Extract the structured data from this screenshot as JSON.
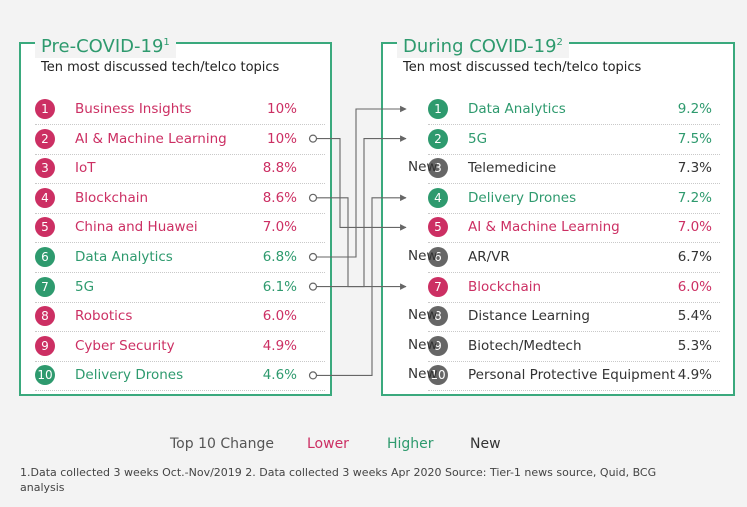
{
  "colors": {
    "lower": "#cc2f63",
    "higher": "#2e9a6e",
    "new": "#666666",
    "frame": "#3aa97d",
    "line": "#666666"
  },
  "left": {
    "title": "Pre-COVID-19",
    "title_sup": "1",
    "subtitle": "Ten most discussed tech/telco topics",
    "items": [
      {
        "rank": "1",
        "label": "Business Insights",
        "pct": "10%",
        "status": "lower"
      },
      {
        "rank": "2",
        "label": "AI & Machine Learning",
        "pct": "10%",
        "status": "lower"
      },
      {
        "rank": "3",
        "label": "IoT",
        "pct": "8.8%",
        "status": "lower"
      },
      {
        "rank": "4",
        "label": "Blockchain",
        "pct": "8.6%",
        "status": "lower"
      },
      {
        "rank": "5",
        "label": "China and Huawei",
        "pct": "7.0%",
        "status": "lower"
      },
      {
        "rank": "6",
        "label": "Data Analytics",
        "pct": "6.8%",
        "status": "higher"
      },
      {
        "rank": "7",
        "label": "5G",
        "pct": "6.1%",
        "status": "higher"
      },
      {
        "rank": "8",
        "label": "Robotics",
        "pct": "6.0%",
        "status": "lower"
      },
      {
        "rank": "9",
        "label": "Cyber Security",
        "pct": "4.9%",
        "status": "lower"
      },
      {
        "rank": "10",
        "label": "Delivery Drones",
        "pct": "4.6%",
        "status": "higher"
      }
    ]
  },
  "right": {
    "title": "During COVID-19",
    "title_sup": "2",
    "subtitle": "Ten most discussed tech/telco topics",
    "items": [
      {
        "rank": "1",
        "label": "Data Analytics",
        "pct": "9.2%",
        "status": "higher",
        "new": ""
      },
      {
        "rank": "2",
        "label": "5G",
        "pct": "7.5%",
        "status": "higher",
        "new": ""
      },
      {
        "rank": "3",
        "label": "Telemedicine",
        "pct": "7.3%",
        "status": "new",
        "new": "New"
      },
      {
        "rank": "4",
        "label": "Delivery Drones",
        "pct": "7.2%",
        "status": "higher",
        "new": ""
      },
      {
        "rank": "5",
        "label": "AI & Machine Learning",
        "pct": "7.0%",
        "status": "lower",
        "new": ""
      },
      {
        "rank": "6",
        "label": "AR/VR",
        "pct": "6.7%",
        "status": "new",
        "new": "New"
      },
      {
        "rank": "7",
        "label": "Blockchain",
        "pct": "6.0%",
        "status": "lower",
        "new": ""
      },
      {
        "rank": "8",
        "label": "Distance Learning",
        "pct": "5.4%",
        "status": "new",
        "new": "New"
      },
      {
        "rank": "9",
        "label": "Biotech/Medtech",
        "pct": "5.3%",
        "status": "new",
        "new": "New"
      },
      {
        "rank": "10",
        "label": "Personal Protective Equipment",
        "pct": "4.9%",
        "status": "new",
        "new": "New"
      }
    ]
  },
  "links": [
    {
      "from_rank": "2",
      "to_rank": "5"
    },
    {
      "from_rank": "4",
      "to_rank": "7"
    },
    {
      "from_rank": "6",
      "to_rank": "1"
    },
    {
      "from_rank": "7",
      "to_rank": "2"
    },
    {
      "from_rank": "10",
      "to_rank": "4"
    }
  ],
  "legend": {
    "title": "Top 10 Change",
    "lower": "Lower",
    "higher": "Higher",
    "new": "New"
  },
  "footnote": "1.Data collected 3 weeks Oct.-Nov/2019 2. Data collected 3 weeks Apr 2020 Source: Tier-1 news source, Quid, BCG analysis"
}
